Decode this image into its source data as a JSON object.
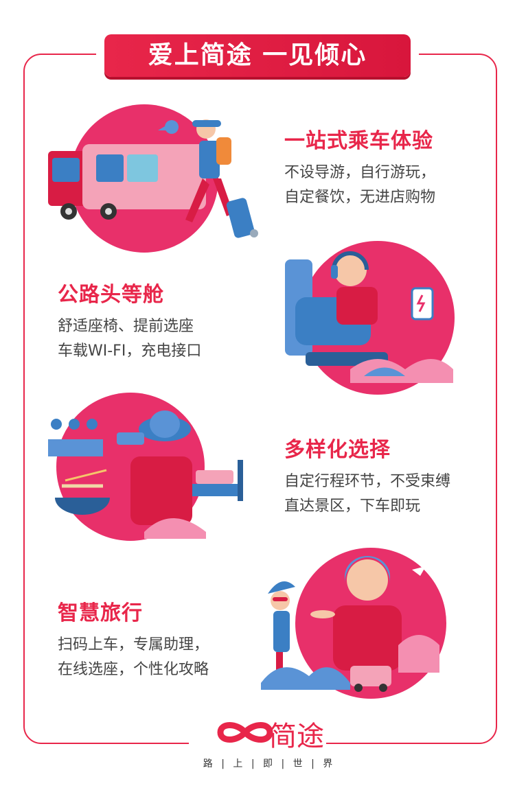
{
  "banner": {
    "title": "爱上简途 一见倾心"
  },
  "features": [
    {
      "title": "一站式乘车体验",
      "lines": [
        "不设导游，自行游玩，",
        "自定餐饮，无进店购物"
      ]
    },
    {
      "title": "公路头等舱",
      "lines": [
        "舒适座椅、提前选座",
        "车载WI-FI，充电接口"
      ]
    },
    {
      "title": "多样化选择",
      "lines": [
        "自定行程环节，不受束缚",
        "直达景区，下车即玩"
      ]
    },
    {
      "title": "智慧旅行",
      "lines": [
        "扫码上车，专属助理，",
        "在线选座，个性化攻略"
      ]
    }
  ],
  "brand": {
    "name": "简途",
    "slogan": "路 | 上 | 即 | 世 | 界"
  },
  "colors": {
    "accent": "#e8264a",
    "blue": "#3b7fc4",
    "pink": "#f06b8f"
  }
}
